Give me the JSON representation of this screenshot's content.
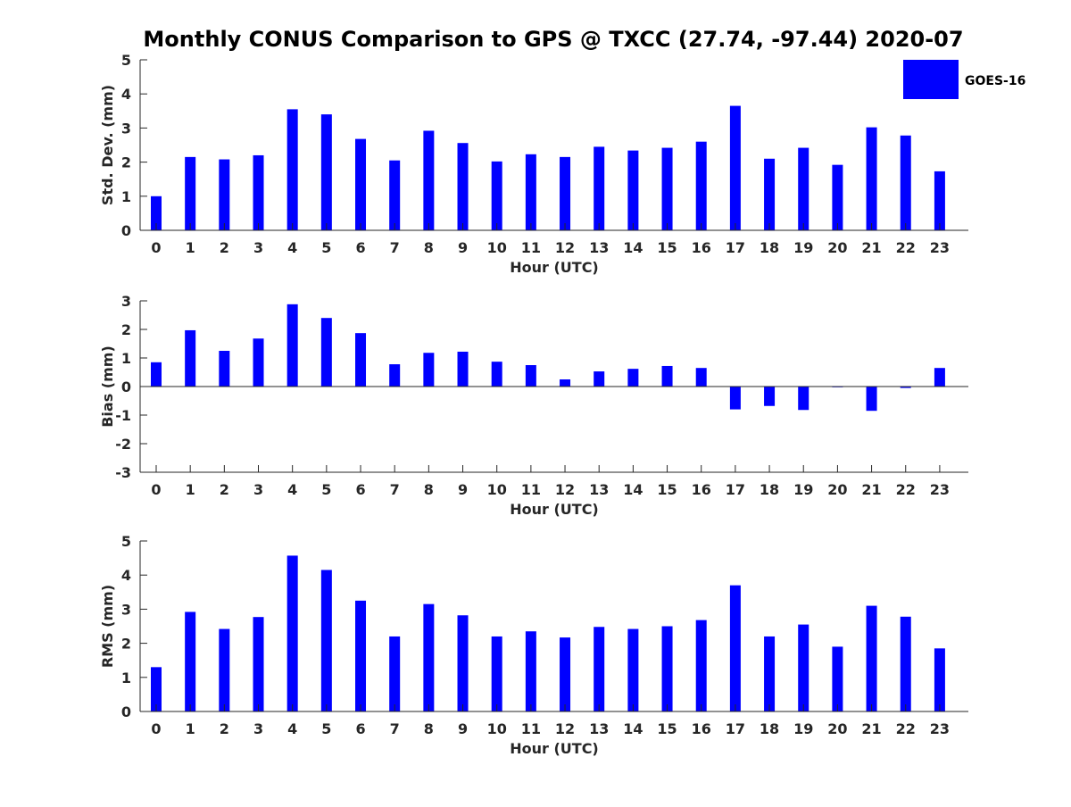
{
  "title": "Monthly CONUS Comparison to GPS @ TXCC (27.74, -97.44) 2020-07",
  "legend": {
    "label": "GOES-16",
    "color": "#0000ff"
  },
  "colors": {
    "bar": "#0000ff",
    "axis": "#262626"
  },
  "chart_data": [
    {
      "type": "bar",
      "name": "std-dev",
      "categories": [
        "0",
        "1",
        "2",
        "3",
        "4",
        "5",
        "6",
        "7",
        "8",
        "9",
        "10",
        "11",
        "12",
        "13",
        "14",
        "15",
        "16",
        "17",
        "18",
        "19",
        "20",
        "21",
        "22",
        "23"
      ],
      "series": [
        {
          "name": "GOES-16",
          "values": [
            1.0,
            2.15,
            2.08,
            2.2,
            3.55,
            3.4,
            2.68,
            2.05,
            2.92,
            2.56,
            2.02,
            2.23,
            2.15,
            2.45,
            2.34,
            2.42,
            2.6,
            3.65,
            2.1,
            2.42,
            1.92,
            3.02,
            2.78,
            1.73
          ]
        }
      ],
      "xlabel": "Hour (UTC)",
      "ylabel": "Std. Dev. (mm)",
      "ylim": [
        0,
        5
      ],
      "yticks": [
        0,
        1,
        2,
        3,
        4,
        5
      ]
    },
    {
      "type": "bar",
      "name": "bias",
      "categories": [
        "0",
        "1",
        "2",
        "3",
        "4",
        "5",
        "6",
        "7",
        "8",
        "9",
        "10",
        "11",
        "12",
        "13",
        "14",
        "15",
        "16",
        "17",
        "18",
        "19",
        "20",
        "21",
        "22",
        "23"
      ],
      "series": [
        {
          "name": "GOES-16",
          "values": [
            0.85,
            1.97,
            1.25,
            1.68,
            2.88,
            2.4,
            1.87,
            0.78,
            1.18,
            1.22,
            0.87,
            0.75,
            0.25,
            0.53,
            0.62,
            0.72,
            0.65,
            -0.8,
            -0.68,
            -0.82,
            -0.02,
            -0.85,
            -0.05,
            0.65
          ]
        }
      ],
      "xlabel": "Hour (UTC)",
      "ylabel": "Bias (mm)",
      "ylim": [
        -3,
        3
      ],
      "yticks": [
        -3,
        -2,
        -1,
        0,
        1,
        2,
        3
      ],
      "zero_line": true
    },
    {
      "type": "bar",
      "name": "rms",
      "categories": [
        "0",
        "1",
        "2",
        "3",
        "4",
        "5",
        "6",
        "7",
        "8",
        "9",
        "10",
        "11",
        "12",
        "13",
        "14",
        "15",
        "16",
        "17",
        "18",
        "19",
        "20",
        "21",
        "22",
        "23"
      ],
      "series": [
        {
          "name": "GOES-16",
          "values": [
            1.3,
            2.92,
            2.42,
            2.77,
            4.57,
            4.15,
            3.25,
            2.2,
            3.15,
            2.82,
            2.2,
            2.35,
            2.17,
            2.48,
            2.42,
            2.5,
            2.68,
            3.7,
            2.2,
            2.55,
            1.9,
            3.1,
            2.78,
            1.85
          ]
        }
      ],
      "xlabel": "Hour (UTC)",
      "ylabel": "RMS (mm)",
      "ylim": [
        0,
        5
      ],
      "yticks": [
        0,
        1,
        2,
        3,
        4,
        5
      ]
    }
  ]
}
